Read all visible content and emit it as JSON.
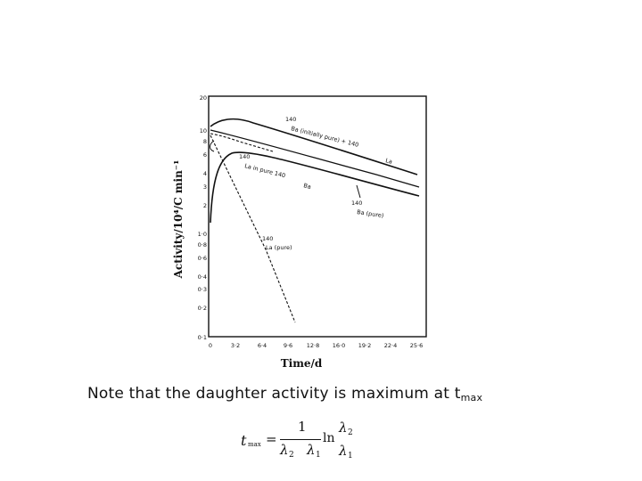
{
  "figure": {
    "ylabel": "Activity/10⁴/C min⁻¹",
    "xlabel": "Time/d",
    "y_ticks": [
      "20",
      "10",
      "8",
      "6",
      "4",
      "3",
      "2",
      "1·0",
      "0·8",
      "0·6",
      "0·4",
      "0·3",
      "0·2",
      "0·1"
    ],
    "x_ticks": [
      "0",
      "3·2",
      "6·4",
      "9·6",
      "12·8",
      "16·0",
      "19·2",
      "22·4",
      "25·6"
    ],
    "annotations": {
      "total": [
        "140",
        "Ba (initially pure) + 140",
        "La"
      ],
      "la_in_pure_ba": [
        "140",
        "La in pure 140",
        "Ba"
      ],
      "ba_pure": [
        "140",
        "Ba (pure)"
      ],
      "la_pure": [
        "140",
        "La (pure)"
      ]
    }
  },
  "note": {
    "text": "Note that the daughter activity is maximum at t",
    "sub": "max"
  },
  "formula": {
    "lhs": "t",
    "lhs_sub": "max",
    "equals": "=",
    "numerator": "1",
    "lambda2": "λ",
    "lambda2_sub": "2",
    "minus_lambda1": "λ",
    "lambda1_sub": "1",
    "ln": "ln",
    "ratio_num": "λ",
    "ratio_num_sub": "2",
    "ratio_den": "λ",
    "ratio_den_sub": "1"
  }
}
